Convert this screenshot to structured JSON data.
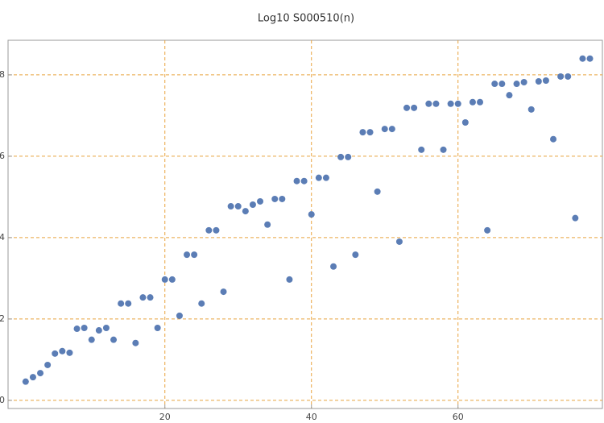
{
  "chart_data": {
    "type": "scatter",
    "title": "Log10 S000510(n)",
    "x": [
      1,
      2,
      3,
      4,
      5,
      6,
      7,
      8,
      9,
      10,
      11,
      12,
      13,
      14,
      15,
      16,
      17,
      18,
      19,
      20,
      21,
      22,
      23,
      24,
      25,
      26,
      27,
      28,
      29,
      30,
      31,
      32,
      33,
      34,
      35,
      36,
      37,
      38,
      39,
      40,
      41,
      42,
      43,
      44,
      45,
      46,
      47,
      48,
      49,
      50,
      51,
      52,
      53,
      54,
      55,
      56,
      57,
      58,
      59,
      60,
      61,
      62,
      63,
      64,
      65,
      66,
      67,
      68,
      69,
      70,
      71,
      72,
      73,
      74,
      75,
      76,
      77,
      78
    ],
    "values": [
      0.46,
      0.57,
      0.67,
      0.87,
      1.15,
      1.21,
      1.17,
      1.76,
      1.78,
      1.49,
      1.72,
      1.78,
      1.49,
      2.38,
      2.38,
      1.41,
      2.53,
      2.53,
      1.78,
      2.97,
      2.97,
      2.08,
      3.58,
      3.58,
      2.38,
      4.18,
      4.18,
      2.67,
      4.77,
      4.77,
      4.65,
      4.81,
      4.89,
      4.32,
      4.95,
      4.95,
      2.97,
      5.39,
      5.39,
      4.57,
      5.47,
      5.47,
      3.29,
      5.98,
      5.98,
      3.58,
      6.59,
      6.59,
      5.13,
      6.67,
      6.67,
      3.9,
      7.19,
      7.19,
      6.16,
      7.29,
      7.29,
      6.16,
      7.29,
      7.29,
      6.83,
      7.33,
      7.33,
      4.18,
      7.78,
      7.78,
      7.5,
      7.78,
      7.82,
      7.15,
      7.84,
      7.86,
      6.42,
      7.96,
      7.96,
      4.48,
      8.4,
      8.4
    ],
    "color": "#5b7db5",
    "xlim": [
      -1.4,
      79.7
    ],
    "ylim": [
      -0.2,
      8.85
    ],
    "xticks": [
      20,
      40,
      60
    ],
    "yticks": [
      0,
      2,
      4,
      6,
      8
    ],
    "grid": true
  }
}
